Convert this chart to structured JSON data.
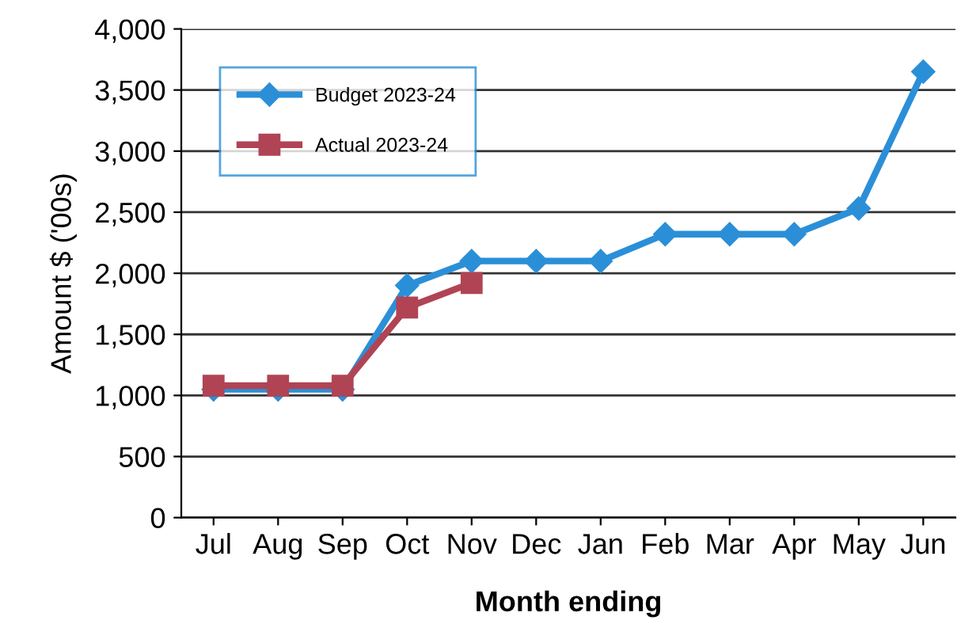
{
  "chart_data": {
    "type": "line",
    "xlabel": "Month ending",
    "ylabel": "Amount $ ('00s)",
    "categories": [
      "Jul",
      "Aug",
      "Sep",
      "Oct",
      "Nov",
      "Dec",
      "Jan",
      "Feb",
      "Mar",
      "Apr",
      "May",
      "Jun"
    ],
    "series": [
      {
        "name": "Budget 2023-24",
        "color": "#2b8fd8",
        "marker": "diamond",
        "values": [
          1050,
          1050,
          1050,
          1900,
          2100,
          2100,
          2100,
          2320,
          2320,
          2320,
          2530,
          3650
        ]
      },
      {
        "name": "Actual 2023-24",
        "color": "#b04455",
        "marker": "square",
        "values": [
          1080,
          1080,
          1080,
          1720,
          1920,
          null,
          null,
          null,
          null,
          null,
          null,
          null
        ]
      }
    ],
    "ylim": [
      0,
      4000
    ],
    "yticks": [
      {
        "value": 0,
        "label": "0"
      },
      {
        "value": 500,
        "label": "500"
      },
      {
        "value": 1000,
        "label": "1,000"
      },
      {
        "value": 1500,
        "label": "1,500"
      },
      {
        "value": 2000,
        "label": "2,000"
      },
      {
        "value": 2500,
        "label": "2,500"
      },
      {
        "value": 3000,
        "label": "3,000"
      },
      {
        "value": 3500,
        "label": "3,500"
      },
      {
        "value": 4000,
        "label": "4,000"
      }
    ],
    "grid": "y",
    "legend": "top left",
    "line_style": "solid"
  }
}
